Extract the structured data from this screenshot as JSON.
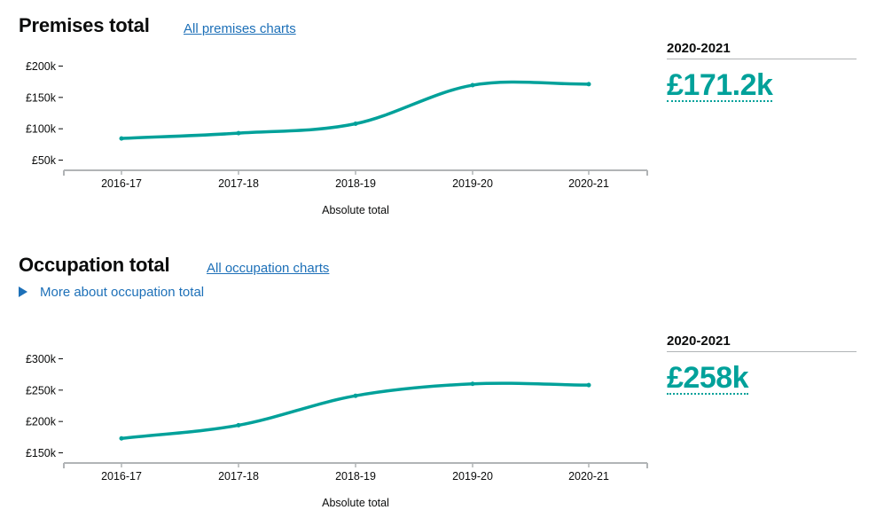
{
  "sections": [
    {
      "title": "Premises total",
      "link": "All premises charts",
      "details": "",
      "summary": {
        "year": "2020-2021",
        "value": "£171.2k"
      }
    },
    {
      "title": "Occupation total",
      "link": "All occupation charts",
      "details": "More about occupation total",
      "summary": {
        "year": "2020-2021",
        "value": "£258k"
      }
    }
  ],
  "colors": {
    "line": "#00a19a",
    "link": "#1d70b8",
    "axis": "#b1b4b6"
  },
  "chart_data": [
    {
      "type": "line",
      "title": "Premises total",
      "xlabel": "Absolute total",
      "ylabel": "",
      "categories": [
        "2016-17",
        "2017-18",
        "2018-19",
        "2019-20",
        "2020-21"
      ],
      "values": [
        84.5,
        93,
        108,
        169.5,
        171.2
      ],
      "yticks": [
        50,
        100,
        150,
        200
      ],
      "ytick_labels": [
        "£50k",
        "£100k",
        "£150k",
        "£200k"
      ],
      "ylim": [
        38,
        212
      ],
      "grid": false
    },
    {
      "type": "line",
      "title": "Occupation total",
      "xlabel": "Absolute total",
      "ylabel": "",
      "categories": [
        "2016-17",
        "2017-18",
        "2018-19",
        "2019-20",
        "2020-21"
      ],
      "values": [
        173,
        194,
        241,
        260,
        258
      ],
      "yticks": [
        150,
        200,
        250,
        300
      ],
      "ytick_labels": [
        "£150k",
        "£200k",
        "£250k",
        "£300k"
      ],
      "ylim": [
        138,
        312
      ],
      "grid": false
    }
  ]
}
